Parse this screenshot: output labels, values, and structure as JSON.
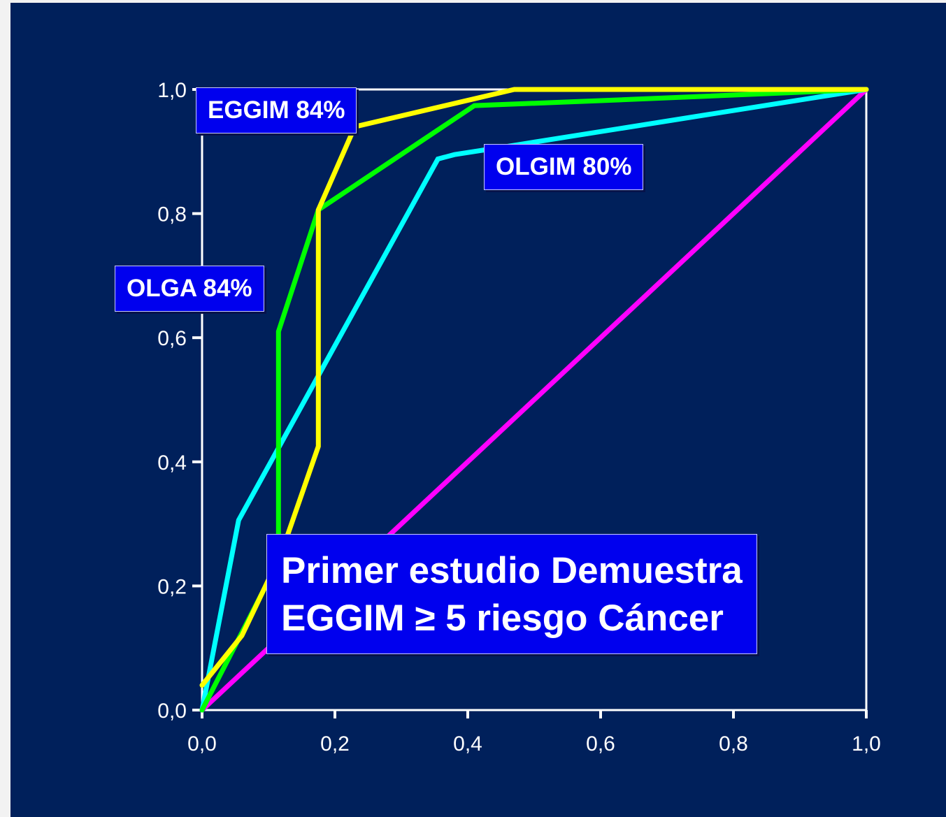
{
  "colors": {
    "background": "#00205b",
    "axis": "#ffffff",
    "label_box": "#0000ee"
  },
  "chart_data": {
    "type": "line",
    "title": "",
    "xlabel": "",
    "ylabel": "",
    "xlim": [
      0,
      1
    ],
    "ylim": [
      0,
      1
    ],
    "x_ticks": [
      "0,0",
      "0,2",
      "0,4",
      "0,6",
      "0,8",
      "1,0"
    ],
    "y_ticks": [
      "0,0",
      "0,2",
      "0,4",
      "0,6",
      "0,8",
      "1,0"
    ],
    "grid": false,
    "series": [
      {
        "color": "#ff00ff",
        "points": [
          [
            0,
            0
          ],
          [
            1,
            1
          ]
        ]
      },
      {
        "color": "#00ffff",
        "points": [
          [
            0,
            0
          ],
          [
            0.055,
            0.306
          ],
          [
            0.355,
            0.888
          ],
          [
            0.38,
            0.895
          ],
          [
            0.47,
            0.91
          ],
          [
            1,
            1
          ]
        ]
      },
      {
        "color": "#00ff00",
        "points": [
          [
            0,
            0
          ],
          [
            0.06,
            0.125
          ],
          [
            0.115,
            0.24
          ],
          [
            0.115,
            0.61
          ],
          [
            0.175,
            0.806
          ],
          [
            0.41,
            0.974
          ],
          [
            0.6,
            0.982
          ],
          [
            1,
            1
          ]
        ]
      },
      {
        "color": "#ffff00",
        "points": [
          [
            0,
            0.04
          ],
          [
            0.06,
            0.12
          ],
          [
            0.12,
            0.255
          ],
          [
            0.175,
            0.425
          ],
          [
            0.175,
            0.806
          ],
          [
            0.23,
            0.94
          ],
          [
            0.47,
            1.0
          ],
          [
            1,
            1
          ]
        ]
      }
    ],
    "annotations": [
      "EGGIM 84%",
      "OLGIM 80%",
      "OLGA 84%"
    ]
  },
  "message": {
    "line1": "Primer estudio Demuestra",
    "line2": "EGGIM ≥ 5 riesgo Cáncer"
  }
}
